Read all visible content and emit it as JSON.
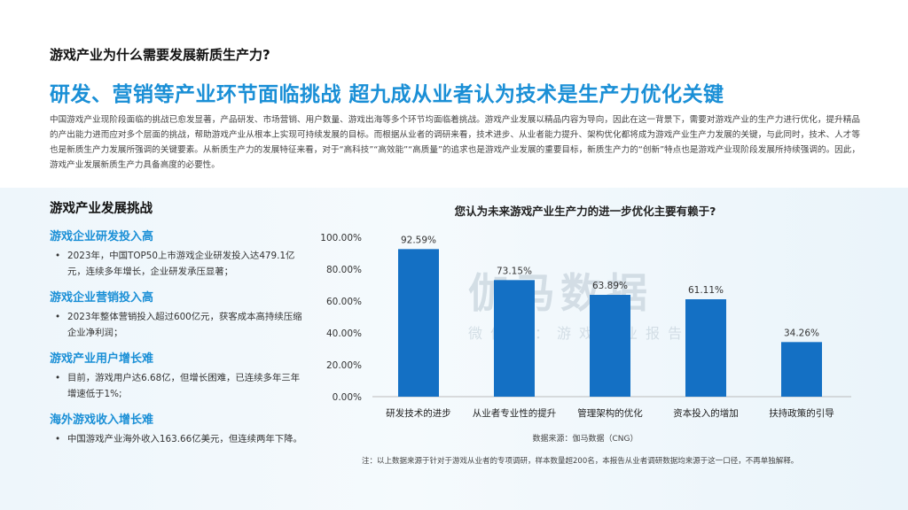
{
  "header": {
    "small_title": "游戏产业为什么需要发展新质生产力?",
    "big_title": "研发、营销等产业环节面临挑战   超九成从业者认为技术是生产力优化关键",
    "intro": "中国游戏产业现阶段面临的挑战已愈发显著，产品研发、市场营销、用户数量、游戏出海等多个环节均面临着挑战。游戏产业发展以精品内容为导向，因此在这一背景下，需要对游戏产业的生产力进行优化，提升精品的产出能力进而应对多个层面的挑战，帮助游戏产业从根本上实现可持续发展的目标。而根据从业者的调研来看，技术进步、从业者能力提升、架构优化都将成为游戏产业生产力发展的关键，与此同时，技术、人才等也是新质生产力发展所强调的关键要素。从新质生产力的发展特征来看，对于“高科技”“高效能”“高质量”的追求也是游戏产业发展的重要目标，新质生产力的“创新”特点也是游戏产业现阶段发展所持续强调的。因此，游戏产业发展新质生产力具备高度的必要性。"
  },
  "left_panel": {
    "heading": "游戏产业发展挑战",
    "items": [
      {
        "title": "游戏企业研发投入高",
        "text": "2023年，中国TOP50上市游戏企业研发投入达479.1亿元，连续多年增长，企业研发承压显著；"
      },
      {
        "title": "游戏企业营销投入高",
        "text": "2023年整体营销投入超过600亿元，获客成本高持续压缩企业净利润；"
      },
      {
        "title": "游戏产业用户增长难",
        "text": "目前，游戏用户达6.68亿，但增长困难，已连续多年三年增速低于1%;"
      },
      {
        "title": "海外游戏收入增长难",
        "text": "中国游戏产业海外收入163.66亿美元，但连续两年下降。"
      }
    ]
  },
  "watermark": {
    "main": "伽马数据",
    "sub": "微信号：游戏产业报告"
  },
  "chart_data": {
    "type": "bar",
    "title": "您认为未来游戏产业生产力的进一步优化主要有赖于?",
    "categories": [
      "研发技术的进步",
      "从业者专业性的提升",
      "管理架构的优化",
      "资本投入的增加",
      "扶持政策的引导"
    ],
    "values": [
      92.59,
      73.15,
      63.89,
      61.11,
      34.26
    ],
    "value_labels": [
      "92.59%",
      "73.15%",
      "63.89%",
      "61.11%",
      "34.26%"
    ],
    "ylim": [
      0,
      100
    ],
    "yticks": [
      0,
      20,
      40,
      60,
      80,
      100
    ],
    "ytick_labels": [
      "0.00%",
      "20.00%",
      "40.00%",
      "60.00%",
      "80.00%",
      "100.00%"
    ],
    "grid": false,
    "bar_color": "#1470c4"
  },
  "footer": {
    "source": "数据来源：伽马数据（CNG）",
    "note": "注：以上数据来源于针对于游戏从业者的专项调研，样本数量超200名，本报告从业者调研数据均来源于这一口径，不再单独解释。"
  }
}
